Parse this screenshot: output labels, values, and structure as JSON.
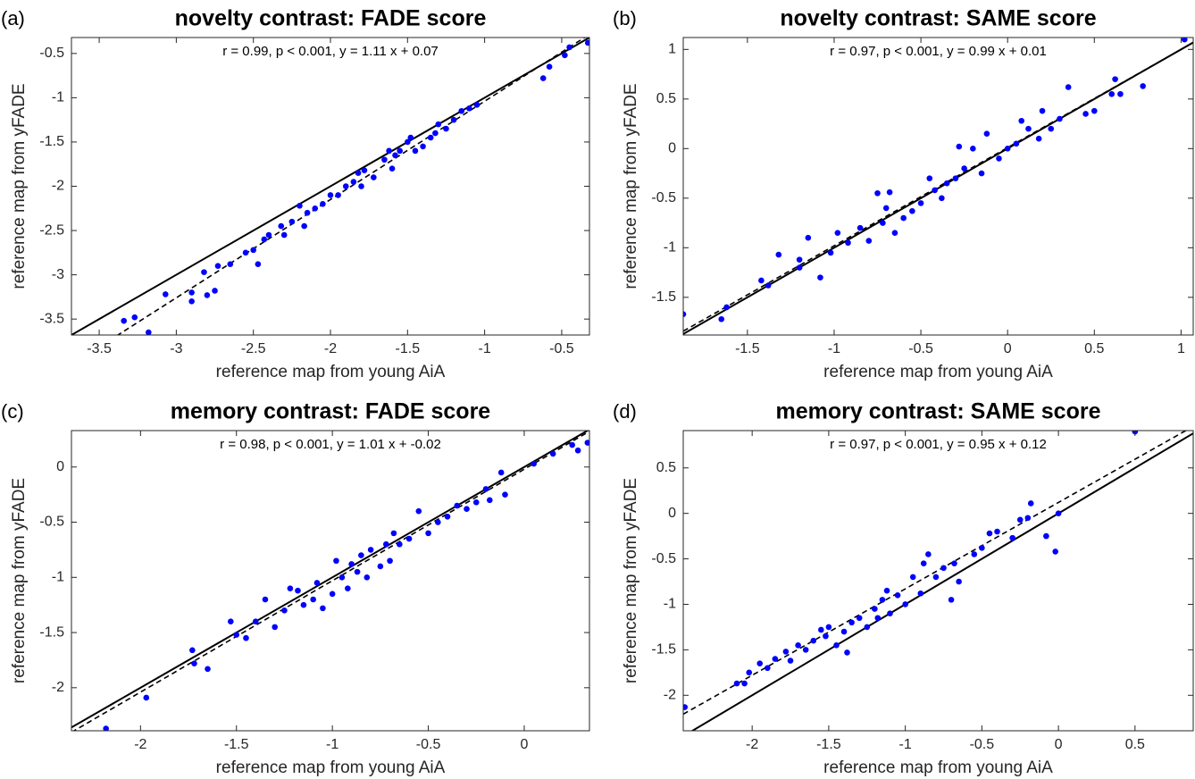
{
  "chart_data": [
    {
      "type": "scatter",
      "panel": "(a)",
      "title": "novelty contrast: FADE score",
      "annotation": "r = 0.99, p < 0.001, y = 1.11 x + 0.07",
      "xlabel": "reference map from young AiA",
      "ylabel": "reference map from yFADE",
      "color": "#0000ff",
      "fit": {
        "slope": 1.11,
        "intercept": 0.07
      },
      "xlim": [
        -3.68,
        -0.32
      ],
      "ylim": [
        -3.68,
        -0.32
      ],
      "xticks": [
        -3.5,
        -3,
        -2.5,
        -2,
        -1.5,
        -1,
        -0.5
      ],
      "yticks": [
        -3.5,
        -3,
        -2.5,
        -2,
        -1.5,
        -1,
        -0.5
      ],
      "x": [
        -3.34,
        -3.27,
        -3.18,
        -3.07,
        -2.9,
        -2.9,
        -2.82,
        -2.8,
        -2.75,
        -2.73,
        -2.65,
        -2.55,
        -2.5,
        -2.47,
        -2.43,
        -2.4,
        -2.32,
        -2.3,
        -2.25,
        -2.2,
        -2.17,
        -2.15,
        -2.1,
        -2.05,
        -2.0,
        -1.95,
        -1.9,
        -1.85,
        -1.82,
        -1.8,
        -1.78,
        -1.72,
        -1.65,
        -1.62,
        -1.6,
        -1.58,
        -1.55,
        -1.5,
        -1.48,
        -1.45,
        -1.4,
        -1.35,
        -1.32,
        -1.3,
        -1.25,
        -1.2,
        -1.15,
        -1.1,
        -1.05,
        -0.62,
        -0.58,
        -0.48,
        -0.45,
        -0.33
      ],
      "values": [
        -3.52,
        -3.48,
        -3.65,
        -3.22,
        -3.3,
        -3.2,
        -2.97,
        -3.23,
        -3.18,
        -2.9,
        -2.88,
        -2.75,
        -2.72,
        -2.88,
        -2.6,
        -2.55,
        -2.45,
        -2.55,
        -2.4,
        -2.22,
        -2.45,
        -2.3,
        -2.25,
        -2.2,
        -2.1,
        -2.1,
        -2.0,
        -1.95,
        -1.85,
        -2.0,
        -1.82,
        -1.9,
        -1.7,
        -1.6,
        -1.8,
        -1.65,
        -1.6,
        -1.5,
        -1.45,
        -1.6,
        -1.55,
        -1.45,
        -1.4,
        -1.3,
        -1.35,
        -1.25,
        -1.15,
        -1.12,
        -1.08,
        -0.78,
        -0.65,
        -0.52,
        -0.43,
        -0.38
      ]
    },
    {
      "type": "scatter",
      "panel": "(b)",
      "title": "novelty contrast: SAME score",
      "annotation": "r = 0.97, p < 0.001, y = 0.99 x + 0.01",
      "xlabel": "reference map from young AiA",
      "ylabel": "reference map from yFADE",
      "color": "#0000ff",
      "fit": {
        "slope": 0.99,
        "intercept": 0.01
      },
      "xlim": [
        -1.87,
        1.07
      ],
      "ylim": [
        -1.88,
        1.12
      ],
      "xticks": [
        -1.5,
        -1,
        -0.5,
        0,
        0.5,
        1
      ],
      "yticks": [
        -1.5,
        -1,
        -0.5,
        0,
        0.5,
        1
      ],
      "x": [
        -1.87,
        -1.65,
        -1.62,
        -1.42,
        -1.38,
        -1.32,
        -1.2,
        -1.2,
        -1.15,
        -1.08,
        -1.02,
        -0.98,
        -0.92,
        -0.85,
        -0.8,
        -0.75,
        -0.72,
        -0.7,
        -0.68,
        -0.65,
        -0.6,
        -0.55,
        -0.5,
        -0.45,
        -0.42,
        -0.38,
        -0.35,
        -0.3,
        -0.28,
        -0.25,
        -0.2,
        -0.15,
        -0.12,
        -0.05,
        0.0,
        0.05,
        0.08,
        0.12,
        0.18,
        0.2,
        0.25,
        0.3,
        0.35,
        0.45,
        0.5,
        0.6,
        0.62,
        0.65,
        0.78,
        1.02
      ],
      "values": [
        -1.67,
        -1.72,
        -1.6,
        -1.33,
        -1.38,
        -1.07,
        -1.2,
        -1.12,
        -0.9,
        -1.3,
        -1.05,
        -0.85,
        -0.95,
        -0.8,
        -0.93,
        -0.45,
        -0.75,
        -0.6,
        -0.44,
        -0.85,
        -0.7,
        -0.63,
        -0.55,
        -0.3,
        -0.42,
        -0.5,
        -0.35,
        -0.3,
        0.02,
        -0.2,
        0.0,
        -0.25,
        0.15,
        -0.1,
        0.0,
        0.05,
        0.28,
        0.2,
        0.1,
        0.38,
        0.2,
        0.3,
        0.62,
        0.35,
        0.38,
        0.55,
        0.7,
        0.55,
        0.63,
        1.1
      ]
    },
    {
      "type": "scatter",
      "panel": "(c)",
      "title": "memory contrast: FADE score",
      "annotation": "r = 0.98, p < 0.001, y = 1.01 x + -0.02",
      "xlabel": "reference map from young AiA",
      "ylabel": "reference map from yFADE",
      "color": "#0000ff",
      "fit": {
        "slope": 1.01,
        "intercept": -0.02
      },
      "xlim": [
        -2.36,
        0.34
      ],
      "ylim": [
        -2.39,
        0.33
      ],
      "xticks": [
        -2,
        -1.5,
        -1,
        -0.5,
        0
      ],
      "yticks": [
        -2,
        -1.5,
        -1,
        -0.5,
        0
      ],
      "x": [
        -2.18,
        -1.97,
        -1.73,
        -1.72,
        -1.65,
        -1.53,
        -1.5,
        -1.45,
        -1.4,
        -1.35,
        -1.3,
        -1.25,
        -1.22,
        -1.18,
        -1.15,
        -1.1,
        -1.08,
        -1.05,
        -1.0,
        -0.98,
        -0.95,
        -0.92,
        -0.9,
        -0.87,
        -0.85,
        -0.82,
        -0.8,
        -0.75,
        -0.72,
        -0.7,
        -0.68,
        -0.65,
        -0.6,
        -0.55,
        -0.5,
        -0.45,
        -0.4,
        -0.35,
        -0.3,
        -0.25,
        -0.2,
        -0.18,
        -0.12,
        -0.1,
        0.05,
        0.15,
        0.25,
        0.28,
        0.33
      ],
      "values": [
        -2.37,
        -2.09,
        -1.66,
        -1.78,
        -1.83,
        -1.4,
        -1.52,
        -1.55,
        -1.4,
        -1.2,
        -1.45,
        -1.3,
        -1.1,
        -1.12,
        -1.25,
        -1.2,
        -1.05,
        -1.28,
        -1.15,
        -0.85,
        -1.0,
        -1.1,
        -0.88,
        -0.95,
        -0.8,
        -1.0,
        -0.75,
        -0.9,
        -0.7,
        -0.85,
        -0.6,
        -0.7,
        -0.65,
        -0.4,
        -0.6,
        -0.5,
        -0.45,
        -0.35,
        -0.38,
        -0.32,
        -0.2,
        -0.3,
        -0.05,
        -0.25,
        0.03,
        0.12,
        0.2,
        0.15,
        0.22
      ]
    },
    {
      "type": "scatter",
      "panel": "(d)",
      "title": "memory contrast: SAME score",
      "annotation": "r = 0.97, p < 0.001, y = 0.95 x + 0.12",
      "xlabel": "reference map from young AiA",
      "ylabel": "reference map from yFADE",
      "color": "#0000ff",
      "fit": {
        "slope": 0.95,
        "intercept": 0.12
      },
      "xlim": [
        -2.45,
        0.88
      ],
      "ylim": [
        -2.39,
        0.91
      ],
      "xticks": [
        -2,
        -1.5,
        -1,
        -0.5,
        0,
        0.5
      ],
      "yticks": [
        -2,
        -1.5,
        -1,
        -0.5,
        0,
        0.5
      ],
      "x": [
        -2.44,
        -2.1,
        -2.05,
        -2.02,
        -1.95,
        -1.9,
        -1.85,
        -1.78,
        -1.75,
        -1.7,
        -1.65,
        -1.6,
        -1.55,
        -1.52,
        -1.5,
        -1.45,
        -1.4,
        -1.38,
        -1.35,
        -1.3,
        -1.25,
        -1.2,
        -1.18,
        -1.15,
        -1.12,
        -1.1,
        -1.05,
        -1.0,
        -0.95,
        -0.9,
        -0.88,
        -0.85,
        -0.8,
        -0.75,
        -0.7,
        -0.68,
        -0.65,
        -0.55,
        -0.5,
        -0.45,
        -0.4,
        -0.3,
        -0.25,
        -0.2,
        -0.18,
        -0.08,
        -0.02,
        0.0,
        0.5
      ],
      "values": [
        -2.13,
        -1.87,
        -1.87,
        -1.75,
        -1.65,
        -1.7,
        -1.6,
        -1.52,
        -1.62,
        -1.45,
        -1.5,
        -1.4,
        -1.28,
        -1.35,
        -1.25,
        -1.45,
        -1.3,
        -1.53,
        -1.2,
        -1.15,
        -1.25,
        -1.05,
        -1.15,
        -0.95,
        -0.85,
        -1.1,
        -0.9,
        -1.0,
        -0.7,
        -0.88,
        -0.55,
        -0.45,
        -0.7,
        -0.6,
        -0.95,
        -0.55,
        -0.75,
        -0.45,
        -0.38,
        -0.22,
        -0.2,
        -0.27,
        -0.07,
        -0.05,
        0.11,
        -0.25,
        -0.42,
        0.0,
        0.9
      ]
    }
  ]
}
